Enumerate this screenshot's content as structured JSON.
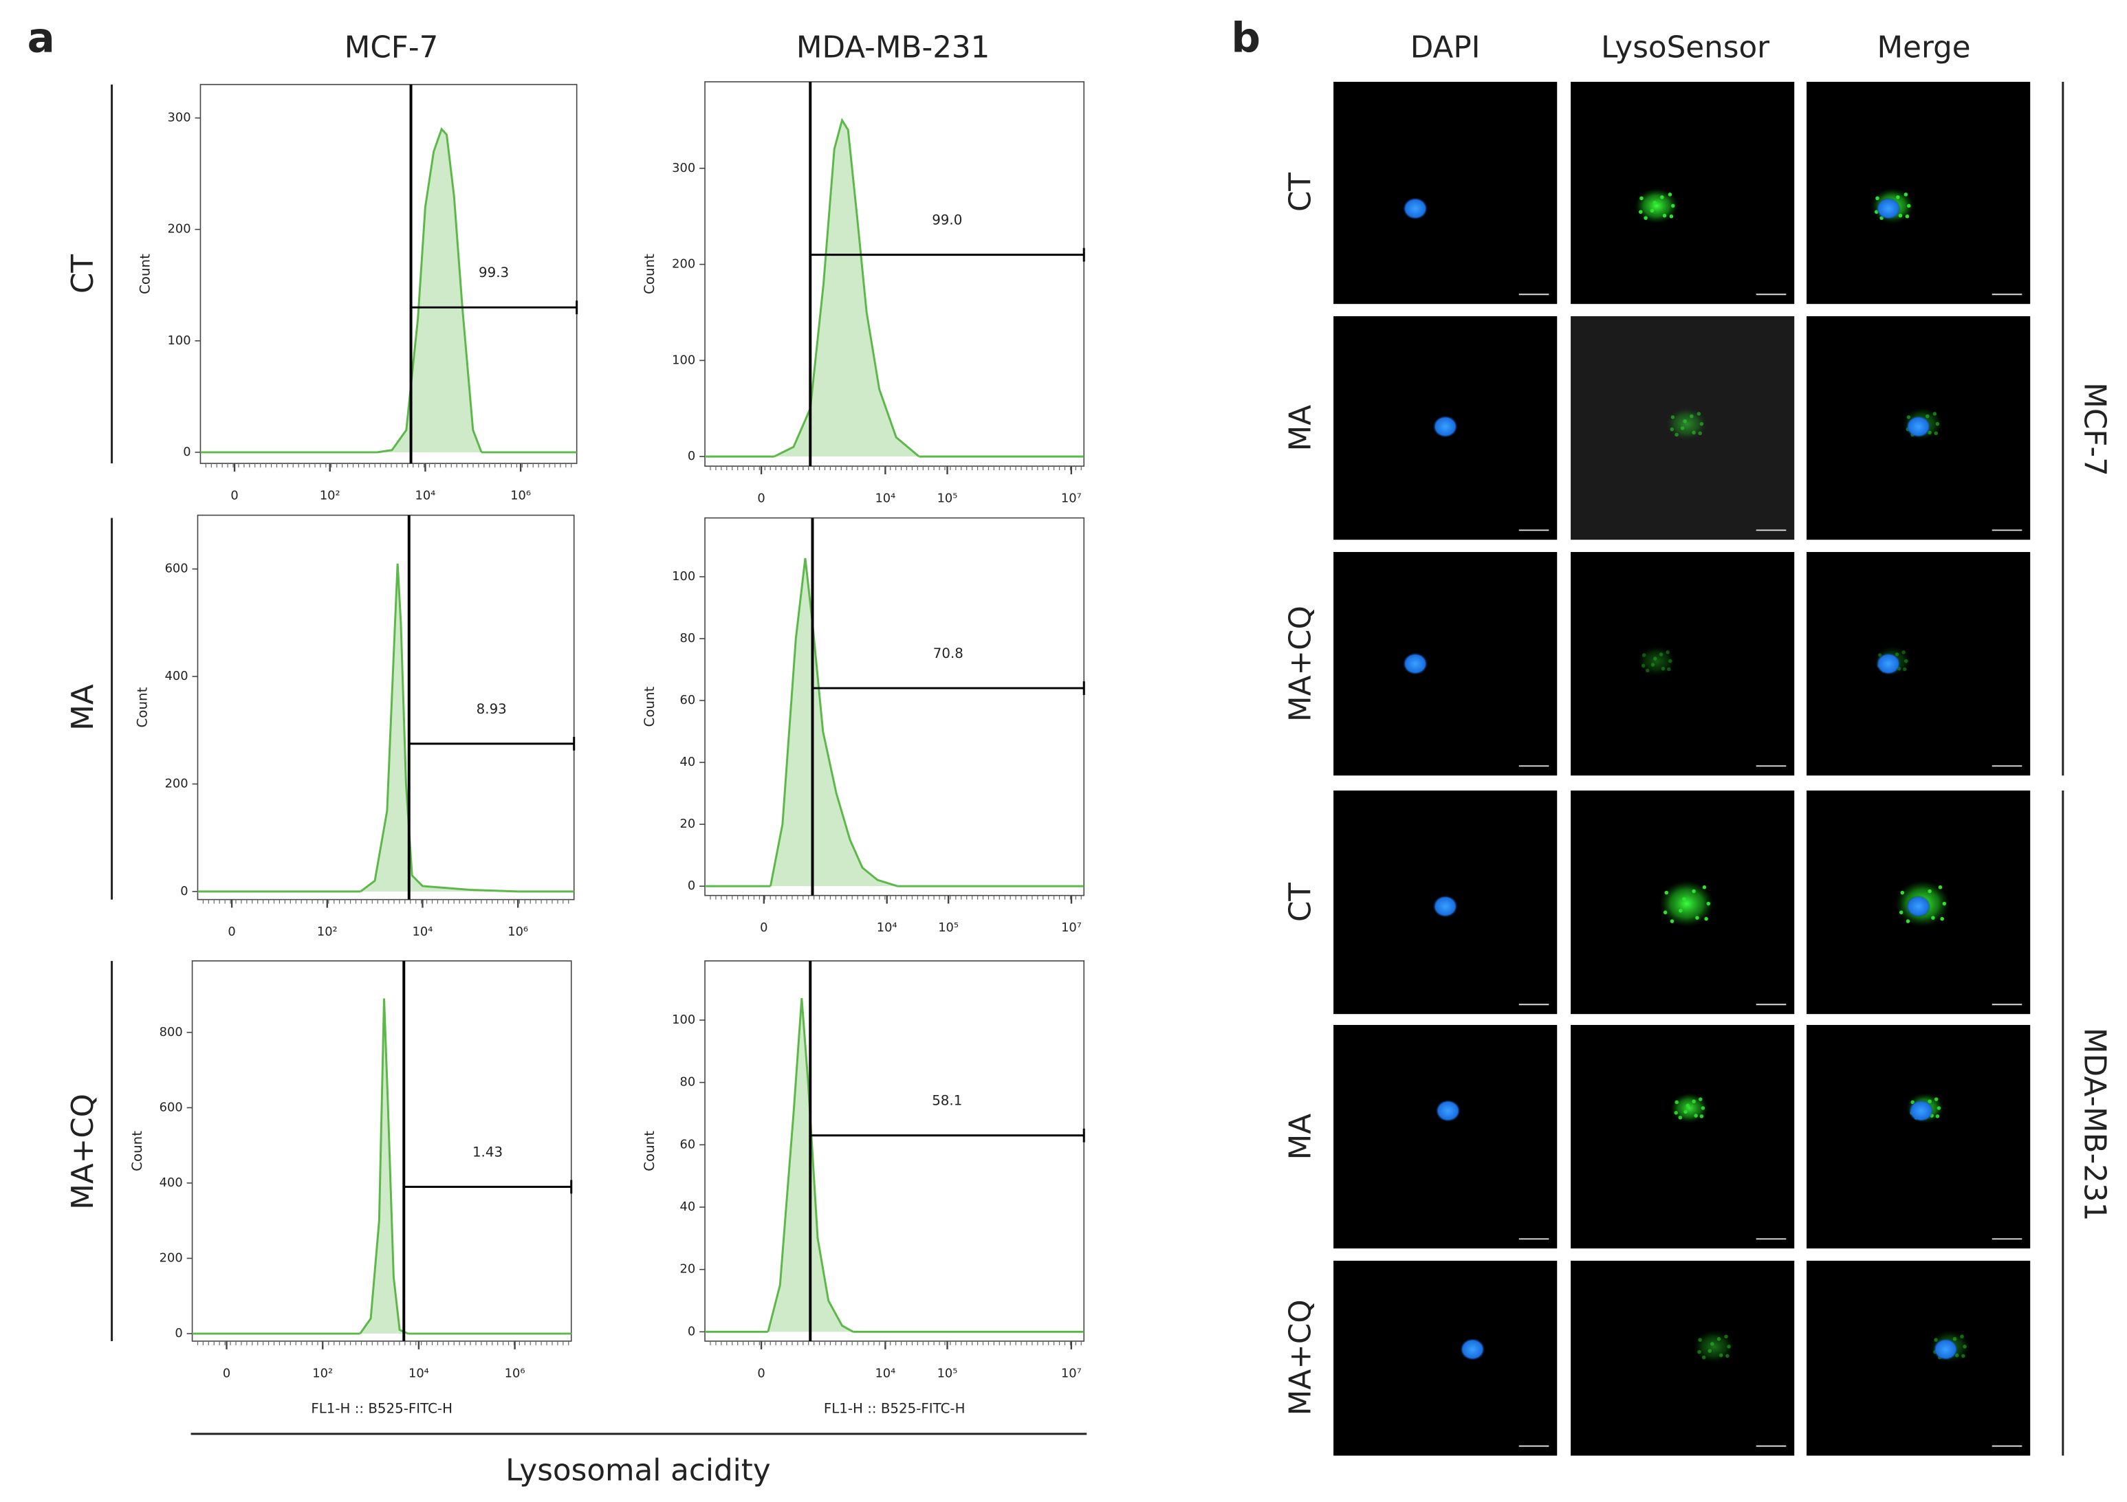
{
  "panel_a": {
    "label": "a",
    "columns": [
      "MCF-7",
      "MDA-MB-231"
    ],
    "rows": [
      "CT",
      "MA",
      "MA+CQ"
    ],
    "xlabel": "Lysosomal acidity"
  },
  "chart_data": [
    {
      "type": "area",
      "ylabel": "Count",
      "color": "#5cb848",
      "x": [
        1000,
        2000,
        4000,
        7000,
        10000,
        15000,
        22000,
        28000,
        40000,
        60000,
        100000,
        150000
      ],
      "values": [
        0,
        2,
        20,
        120,
        220,
        270,
        290,
        285,
        230,
        130,
        20,
        0
      ],
      "xscale": "biexponential",
      "xlim": [
        -5,
        15000000
      ],
      "xticks": [
        0,
        {
          "value": 100,
          "label": "10²"
        },
        {
          "value": 10000,
          "label": "10⁴"
        },
        {
          "value": 1000000,
          "label": "10⁶"
        }
      ],
      "ylim": [
        -10,
        330
      ],
      "yticks": [
        0,
        100,
        200,
        300
      ],
      "gate": {
        "x": 5000,
        "level": 130,
        "value": 99.3
      }
    },
    {
      "type": "area",
      "ylabel": "Count",
      "color": "#5cb848",
      "x": [
        100,
        300,
        600,
        1000,
        1500,
        2000,
        2500,
        3500,
        5000,
        8000,
        15000,
        35000
      ],
      "values": [
        0,
        10,
        50,
        180,
        320,
        350,
        340,
        250,
        150,
        70,
        20,
        0
      ],
      "xscale": "biexponential",
      "xlim": [
        -800,
        16000000
      ],
      "xticks": [
        0,
        {
          "value": 10000,
          "label": "10⁴"
        },
        {
          "value": 100000,
          "label": "10⁵"
        },
        {
          "value": 10000000,
          "label": "10⁷"
        }
      ],
      "ylim": [
        -10,
        390
      ],
      "yticks": [
        0,
        100,
        200,
        300
      ],
      "gate": {
        "x": 600,
        "level": 210,
        "value": 99.0,
        "value_label": "99.0"
      }
    },
    {
      "type": "area",
      "ylabel": "Count",
      "color": "#5cb848",
      "x": [
        500,
        1000,
        1800,
        2500,
        3000,
        3500,
        4500,
        6000,
        10000,
        100000,
        1000000
      ],
      "values": [
        0,
        20,
        150,
        450,
        610,
        500,
        200,
        30,
        10,
        3,
        0
      ],
      "xscale": "biexponential",
      "xlim": [
        -5,
        15000000
      ],
      "xticks": [
        0,
        {
          "value": 100,
          "label": "10²"
        },
        {
          "value": 10000,
          "label": "10⁴"
        },
        {
          "value": 1000000,
          "label": "10⁶"
        }
      ],
      "ylim": [
        -15,
        700
      ],
      "yticks": [
        0,
        200,
        400,
        600
      ],
      "gate": {
        "x": 5200,
        "level": 275,
        "value": 8.93
      }
    },
    {
      "type": "area",
      "ylabel": "Count",
      "color": "#5cb848",
      "x": [
        50,
        150,
        300,
        450,
        600,
        900,
        1500,
        2500,
        4000,
        7000,
        15000
      ],
      "values": [
        0,
        20,
        80,
        106,
        85,
        50,
        30,
        15,
        6,
        2,
        0
      ],
      "xscale": "biexponential",
      "xlim": [
        -900,
        16000000
      ],
      "xticks": [
        0,
        {
          "value": 10000,
          "label": "10⁴"
        },
        {
          "value": 100000,
          "label": "10⁵"
        },
        {
          "value": 10000000,
          "label": "10⁷"
        }
      ],
      "ylim": [
        -3,
        119
      ],
      "yticks": [
        0,
        20,
        40,
        60,
        80,
        100
      ],
      "gate": {
        "x": 600,
        "level": 64,
        "value": 70.8
      }
    },
    {
      "type": "area",
      "ylabel": "Count",
      "xlabel": "FL1-H :: B525-FITC-H",
      "color": "#5cb848",
      "x": [
        600,
        1000,
        1500,
        1900,
        2300,
        3000,
        4000,
        6000
      ],
      "values": [
        0,
        40,
        300,
        890,
        600,
        150,
        10,
        0
      ],
      "xscale": "biexponential",
      "xlim": [
        -5,
        15000000
      ],
      "xticks": [
        0,
        {
          "value": 100,
          "label": "10²"
        },
        {
          "value": 10000,
          "label": "10⁴"
        },
        {
          "value": 1000000,
          "label": "10⁶"
        }
      ],
      "ylim": [
        -20,
        990
      ],
      "yticks": [
        0,
        200,
        400,
        600,
        800
      ],
      "gate": {
        "x": 4900,
        "level": 390,
        "value": 1.43
      }
    },
    {
      "type": "area",
      "ylabel": "Count",
      "xlabel": "FL1-H :: B525-FITC-H",
      "color": "#5cb848",
      "x": [
        50,
        150,
        300,
        425,
        550,
        800,
        1200,
        2000,
        3000
      ],
      "values": [
        0,
        15,
        70,
        107,
        80,
        30,
        10,
        2,
        0
      ],
      "xscale": "biexponential",
      "xlim": [
        -800,
        16000000
      ],
      "xticks": [
        0,
        {
          "value": 10000,
          "label": "10⁴"
        },
        {
          "value": 100000,
          "label": "10⁵"
        },
        {
          "value": 10000000,
          "label": "10⁷"
        }
      ],
      "ylim": [
        -3,
        119
      ],
      "yticks": [
        0,
        20,
        40,
        60,
        80,
        100
      ],
      "gate": {
        "x": 600,
        "level": 63,
        "value": 58.1
      }
    }
  ],
  "panel_b": {
    "label": "b",
    "columns": [
      "DAPI",
      "LysoSensor",
      "Merge"
    ],
    "rows": [
      "CT",
      "MA",
      "MA+CQ",
      "CT",
      "MA",
      "MA+CQ"
    ],
    "groups": [
      "MCF-7",
      "MDA-MB-231"
    ]
  }
}
